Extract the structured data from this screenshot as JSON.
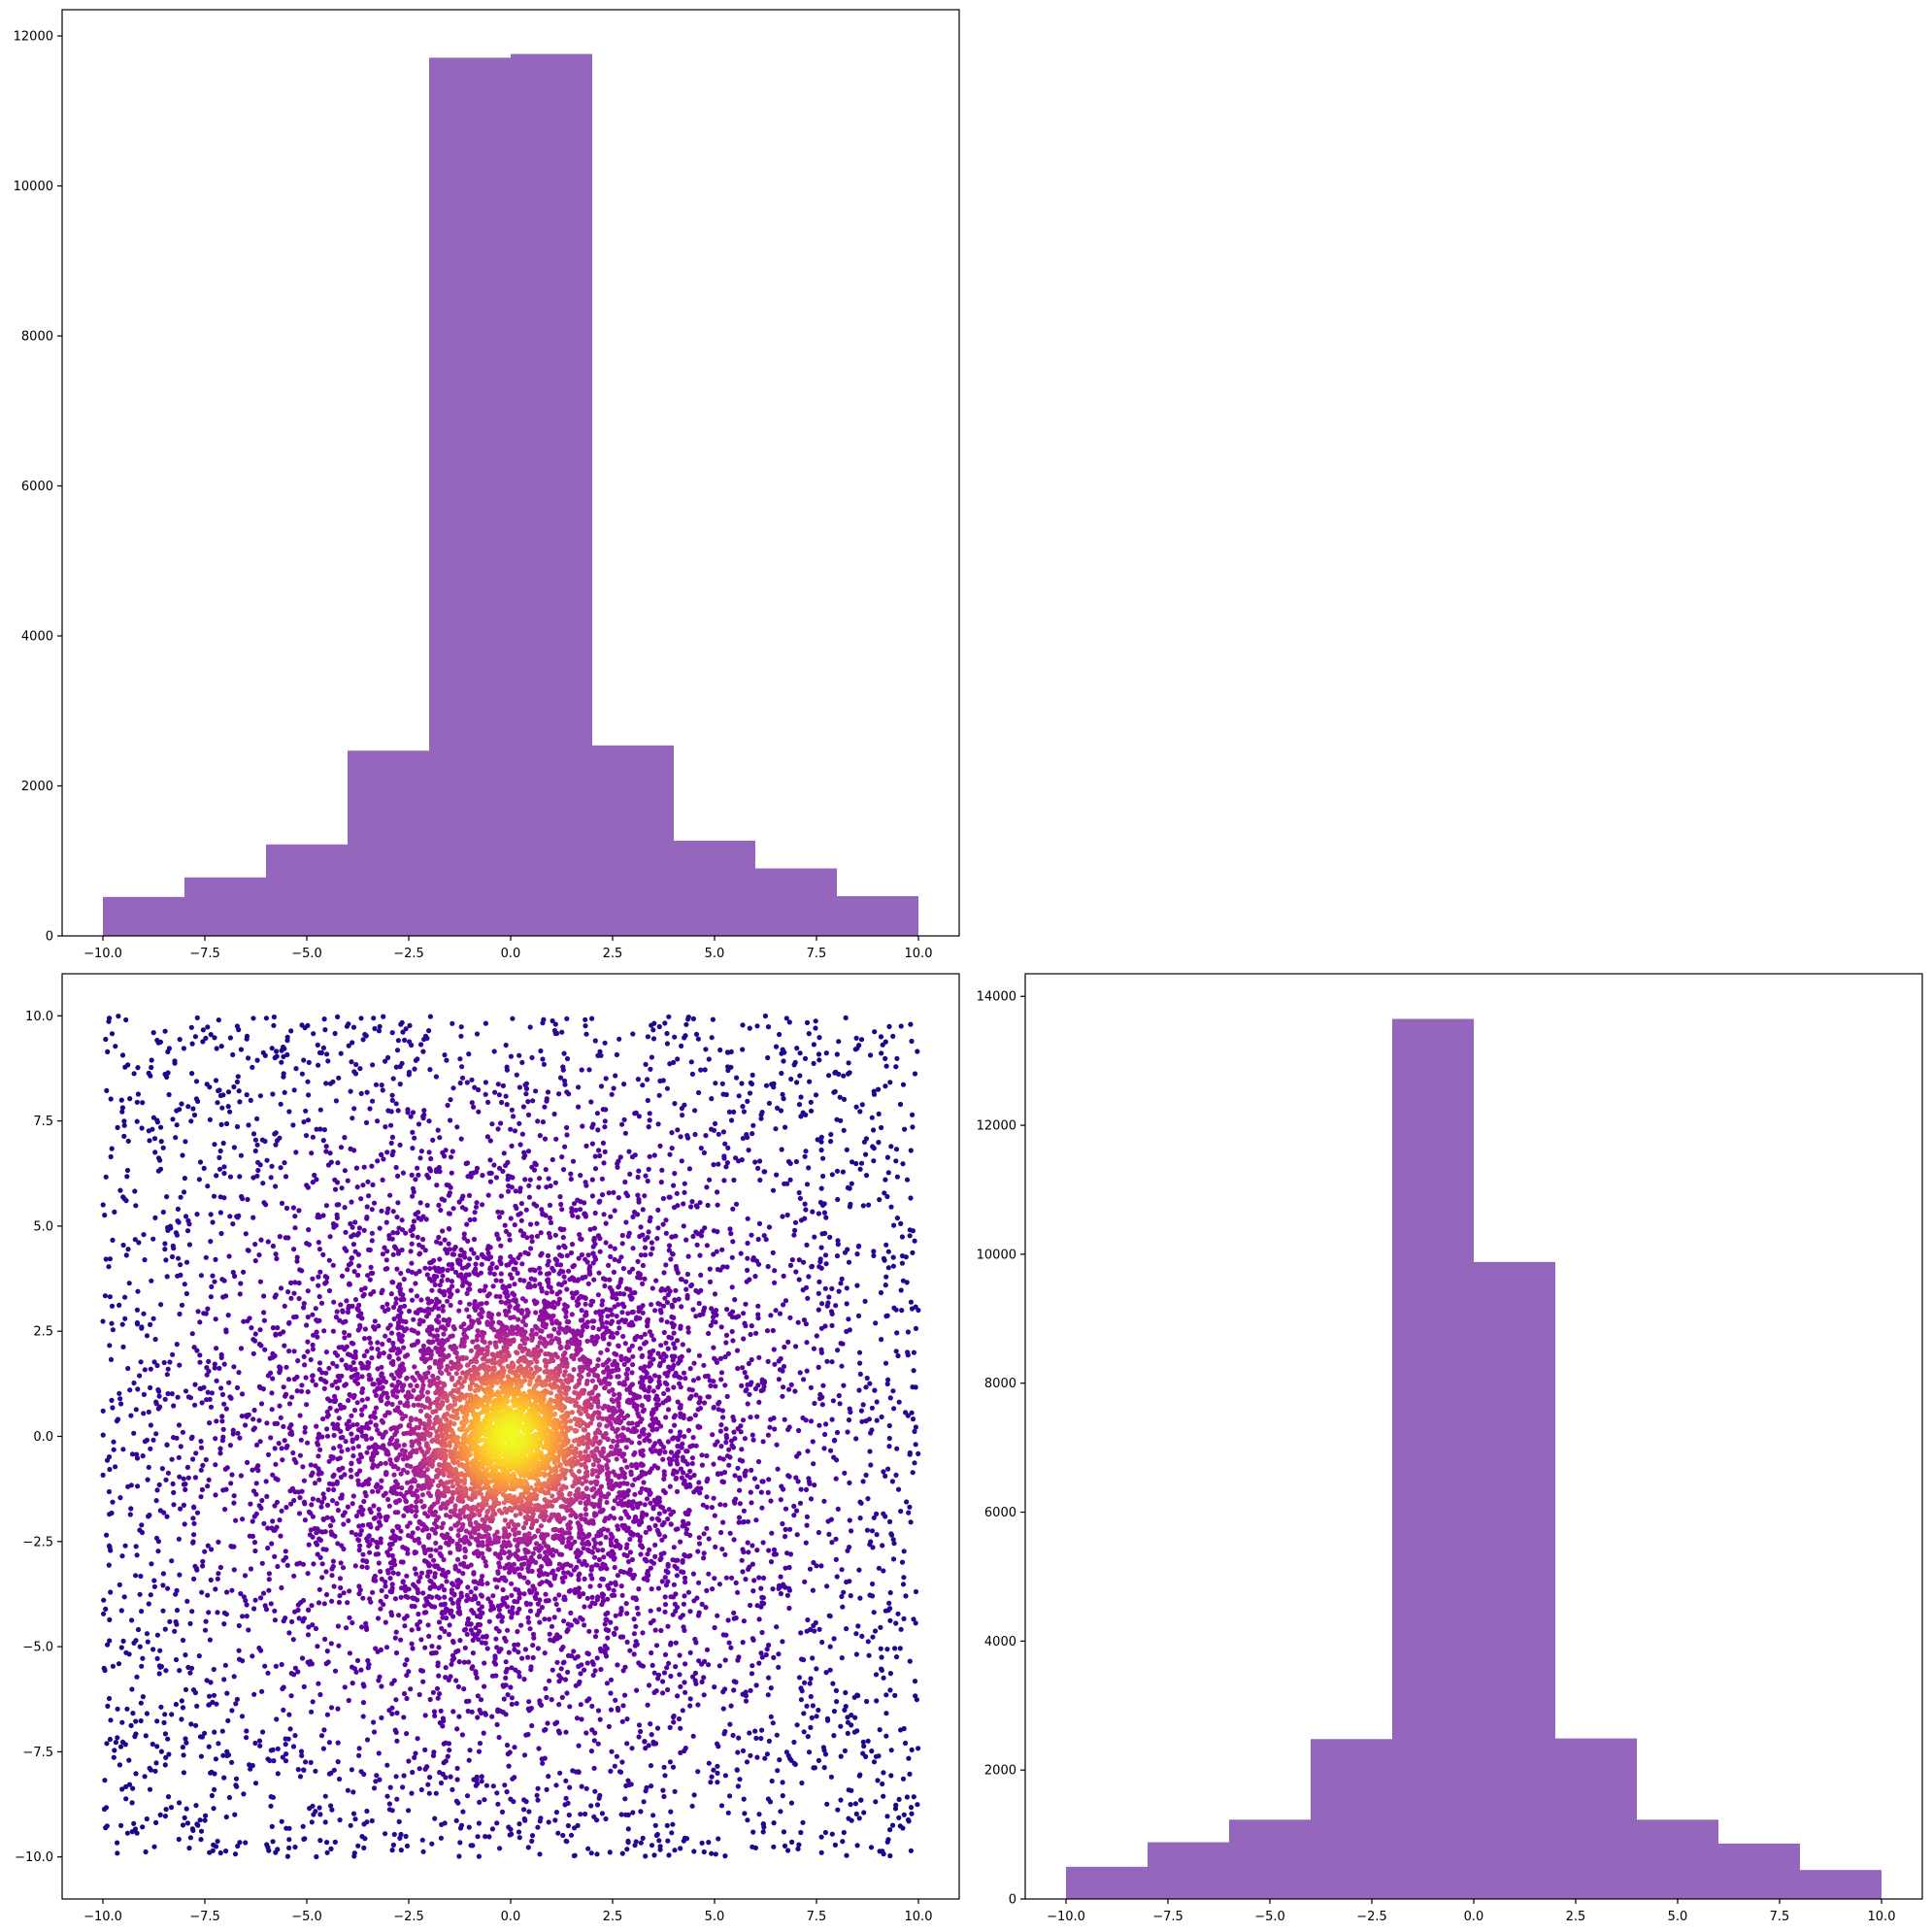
{
  "chart_data": [
    {
      "panel": "top-left",
      "type": "bar",
      "kind": "histogram",
      "bin_edges": [
        -10,
        -8,
        -6,
        -4,
        -2,
        0,
        2,
        4,
        6,
        8,
        10
      ],
      "values": [
        520,
        780,
        1220,
        2470,
        11710,
        11760,
        2540,
        1270,
        900,
        530
      ],
      "xlim": [
        -11,
        11
      ],
      "ylim": [
        0,
        12350
      ],
      "xticks": [
        -10.0,
        -7.5,
        -5.0,
        -2.5,
        0.0,
        2.5,
        5.0,
        7.5,
        10.0
      ],
      "xtick_labels": [
        "−10.0",
        "−7.5",
        "−5.0",
        "−2.5",
        "0.0",
        "2.5",
        "5.0",
        "7.5",
        "10.0"
      ],
      "yticks": [
        0,
        2000,
        4000,
        6000,
        8000,
        10000,
        12000
      ],
      "ytick_labels": [
        "0",
        "2000",
        "4000",
        "6000",
        "8000",
        "10000",
        "12000"
      ],
      "color": "#9467bd",
      "title": "",
      "xlabel": "",
      "ylabel": "",
      "grid": false
    },
    {
      "panel": "bottom-left",
      "type": "scatter",
      "distribution": "uniform square mixed with central gaussian; color by density",
      "x_range": [
        -10,
        10
      ],
      "y_range": [
        -10,
        10
      ],
      "center": [
        0,
        0
      ],
      "colormap": "plasma",
      "xlim": [
        -11,
        11
      ],
      "ylim": [
        -11,
        11
      ],
      "xticks": [
        -10.0,
        -7.5,
        -5.0,
        -2.5,
        0.0,
        2.5,
        5.0,
        7.5,
        10.0
      ],
      "xtick_labels": [
        "−10.0",
        "−7.5",
        "−5.0",
        "−2.5",
        "0.0",
        "2.5",
        "5.0",
        "7.5",
        "10.0"
      ],
      "yticks": [
        -10.0,
        -7.5,
        -5.0,
        -2.5,
        0.0,
        2.5,
        5.0,
        7.5,
        10.0
      ],
      "ytick_labels": [
        "−10.0",
        "−7.5",
        "−5.0",
        "−2.5",
        "0.0",
        "2.5",
        "5.0",
        "7.5",
        "10.0"
      ],
      "title": "",
      "xlabel": "",
      "ylabel": "",
      "grid": false
    },
    {
      "panel": "bottom-right",
      "type": "bar",
      "kind": "histogram",
      "bin_edges": [
        -10,
        -8,
        -6,
        -4,
        -2,
        0,
        2,
        4,
        6,
        8,
        10
      ],
      "values": [
        500,
        880,
        1230,
        2480,
        13650,
        9880,
        2490,
        1230,
        860,
        450
      ],
      "xlim": [
        -11,
        11
      ],
      "ylim": [
        0,
        14350
      ],
      "xticks": [
        -10.0,
        -7.5,
        -5.0,
        -2.5,
        0.0,
        2.5,
        5.0,
        7.5,
        10.0
      ],
      "xtick_labels": [
        "−10.0",
        "−7.5",
        "−5.0",
        "−2.5",
        "0.0",
        "2.5",
        "5.0",
        "7.5",
        "10.0"
      ],
      "yticks": [
        0,
        2000,
        4000,
        6000,
        8000,
        10000,
        12000,
        14000
      ],
      "ytick_labels": [
        "0",
        "2000",
        "4000",
        "6000",
        "8000",
        "10000",
        "12000",
        "14000"
      ],
      "color": "#9467bd",
      "title": "",
      "xlabel": "",
      "ylabel": "",
      "grid": false
    }
  ]
}
